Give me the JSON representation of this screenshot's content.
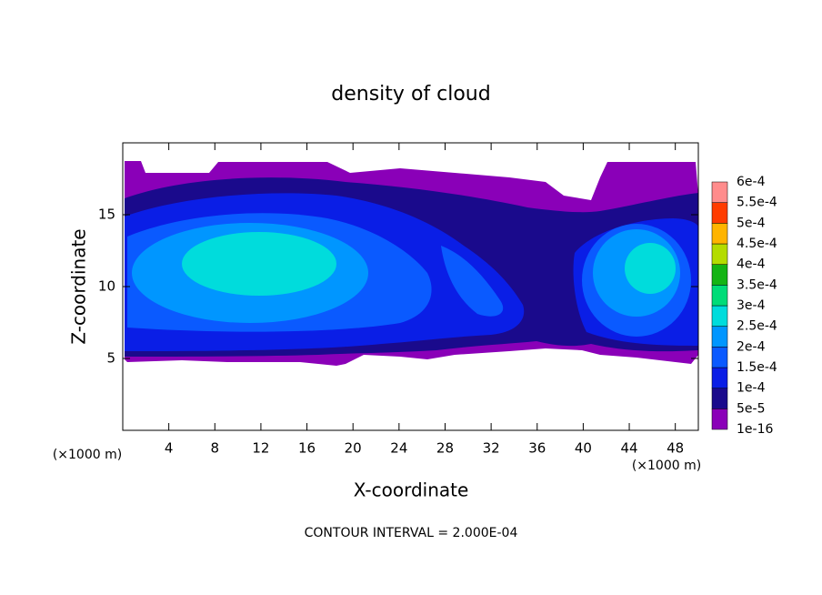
{
  "chart_data": {
    "type": "contour",
    "title": "density of cloud",
    "x_label": "X-coordinate",
    "y_label": "Z-coordinate",
    "x_unit_label": "(×1000 m)",
    "y_unit_label": "(×1000 m)",
    "footer": "CONTOUR INTERVAL = 2.000E-04",
    "xlim": [
      0,
      50
    ],
    "xticks": [
      4,
      8,
      12,
      16,
      20,
      24,
      28,
      32,
      36,
      40,
      44,
      48
    ],
    "ylim": [
      0,
      20
    ],
    "yticks": [
      5,
      10,
      15
    ],
    "colorbar": {
      "levels": [
        1e-16,
        {
          "value": 5e-05,
          "label": "5e-5"
        },
        {
          "value": 0.0001,
          "label": "1e-4"
        },
        {
          "value": 0.00015,
          "label": "1.5e-4"
        },
        {
          "value": 0.0002,
          "label": "2e-4"
        },
        {
          "value": 0.00025,
          "label": "2.5e-4"
        },
        {
          "value": 0.0003,
          "label": "3e-4"
        },
        {
          "value": 0.00035,
          "label": "3.5e-4"
        },
        {
          "value": 0.0004,
          "label": "4e-4"
        },
        {
          "value": 0.00045,
          "label": "4.5e-4"
        },
        {
          "value": 0.0005,
          "label": "5e-4"
        },
        {
          "value": 0.00055,
          "label": "5.5e-4"
        },
        {
          "value": 0.0006,
          "label": "6e-4"
        }
      ],
      "colors": [
        "#8a00b8",
        "#1a0a8c",
        "#0a1ee6",
        "#0a5aff",
        "#0096ff",
        "#00dcdc",
        "#00dc78",
        "#14b414",
        "#b4dc00",
        "#ffb400",
        "#ff3c00",
        "#ff8c8c"
      ]
    }
  }
}
